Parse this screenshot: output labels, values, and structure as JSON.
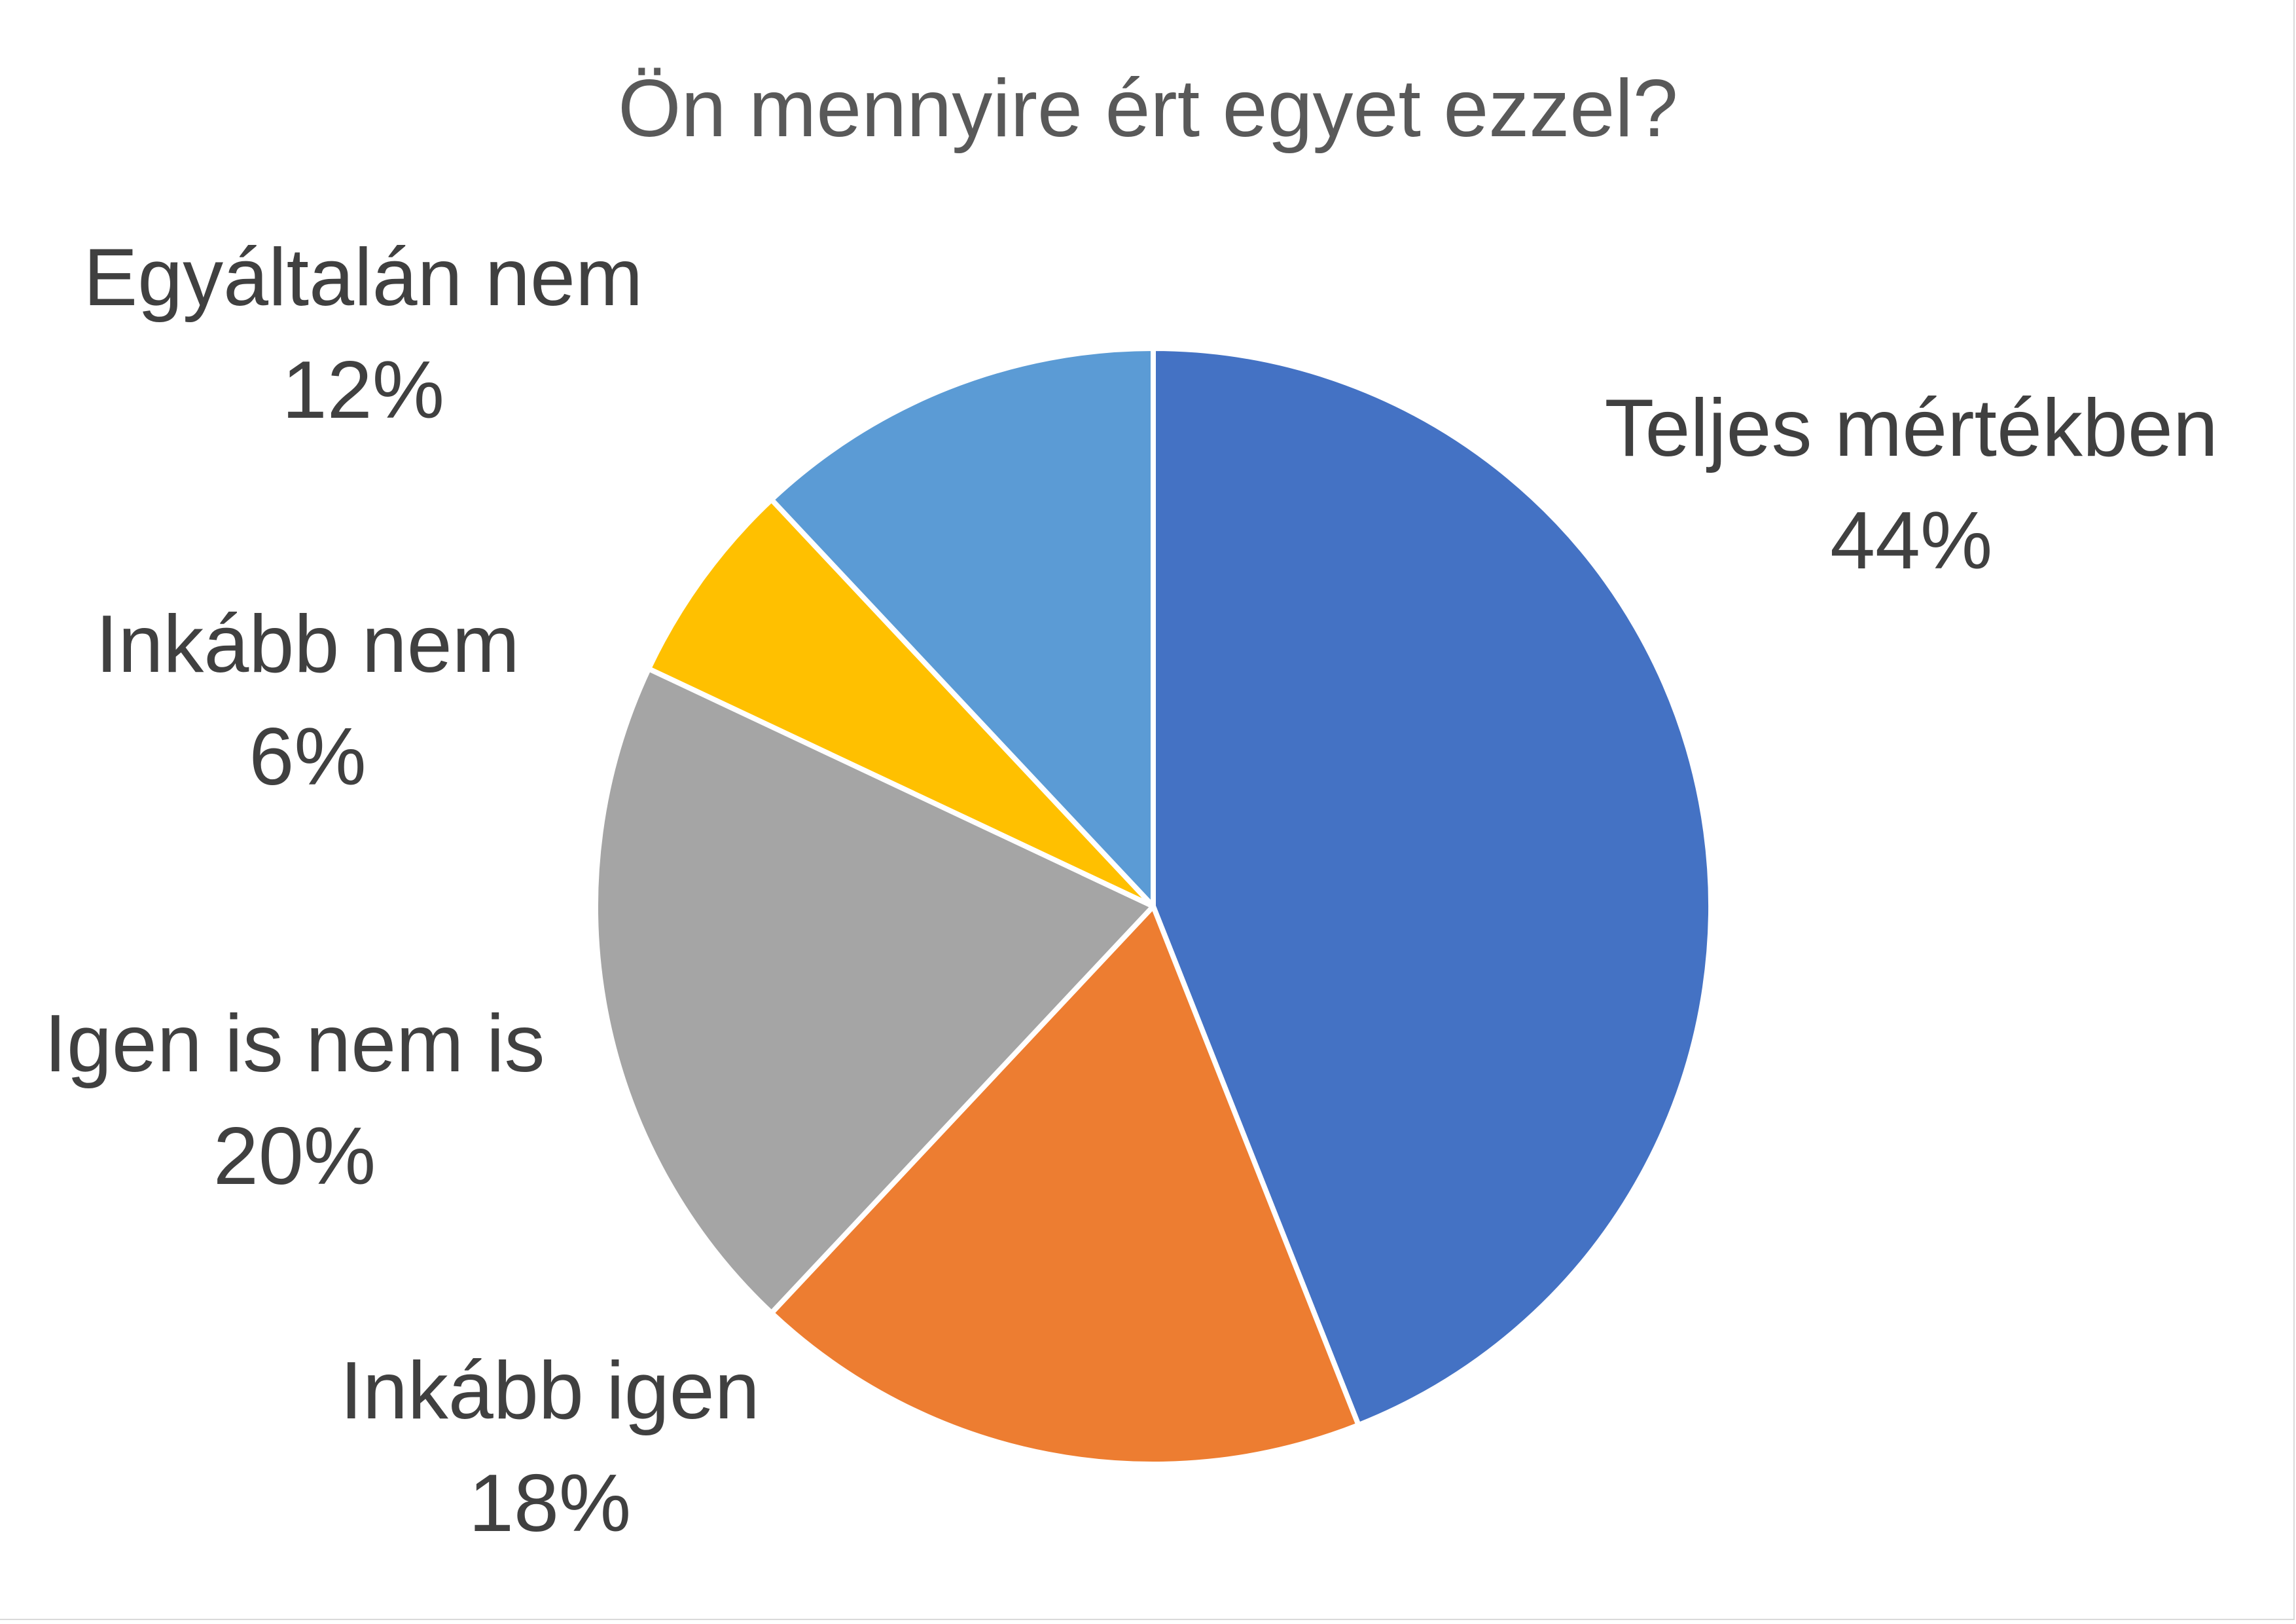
{
  "chart_data": {
    "type": "pie",
    "title": "Ön mennyire ért egyet ezzel?",
    "categories": [
      "Teljes mértékben",
      "Inkább igen",
      "Igen is nem is",
      "Inkább nem",
      "Egyáltalán nem"
    ],
    "values": [
      44,
      18,
      20,
      6,
      12
    ],
    "value_labels": [
      "44%",
      "18%",
      "20%",
      "6%",
      "12%"
    ],
    "colors": [
      "#4472C4",
      "#ED7D31",
      "#A5A5A5",
      "#FFC000",
      "#5B9BD5"
    ],
    "start_angle_deg": 0,
    "direction": "clockwise",
    "legend": "none"
  }
}
